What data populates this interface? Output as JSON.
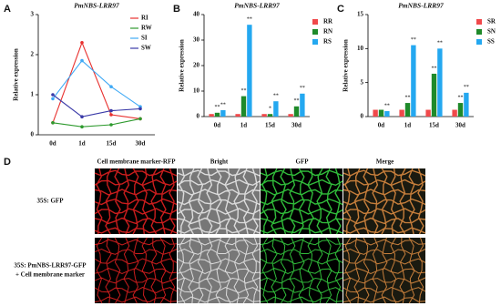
{
  "chart_data": [
    {
      "type": "line",
      "label": "A",
      "title": "PmNBS-LRR97",
      "y_label": "Relative expression",
      "categories": [
        "0d",
        "1d",
        "15d",
        "30d"
      ],
      "series": [
        {
          "name": "RI",
          "color": "#e8312f",
          "values": [
            0.3,
            2.3,
            0.5,
            0.4
          ]
        },
        {
          "name": "RW",
          "color": "#2e9a2e",
          "values": [
            0.3,
            0.2,
            0.25,
            0.4
          ]
        },
        {
          "name": "SI",
          "color": "#3fa9f5",
          "values": [
            0.9,
            1.85,
            1.2,
            0.7
          ]
        },
        {
          "name": "SW",
          "color": "#3a3aa8",
          "values": [
            1.0,
            0.45,
            0.6,
            0.65
          ]
        }
      ],
      "ylim": [
        0,
        3
      ],
      "yticks": [
        0,
        1,
        2,
        3
      ]
    },
    {
      "type": "bar",
      "label": "B",
      "title": "PmNBS-LRR97",
      "y_label": "Relative expression",
      "categories": [
        "0d",
        "1d",
        "15d",
        "30d"
      ],
      "series": [
        {
          "name": "RR",
          "color": "#f0494b",
          "values": [
            1,
            1,
            1,
            1
          ],
          "significance": [
            null,
            null,
            null,
            null
          ]
        },
        {
          "name": "RN",
          "color": "#1f8a2a",
          "values": [
            1.5,
            8,
            1,
            4
          ],
          "significance": [
            "**",
            "**",
            "*",
            "**"
          ]
        },
        {
          "name": "RS",
          "color": "#24a8f0",
          "values": [
            2.5,
            36,
            6,
            9
          ],
          "significance": [
            "**",
            "**",
            "**",
            "**"
          ]
        }
      ],
      "ylim": [
        0,
        40
      ],
      "yticks": [
        0,
        10,
        20,
        30,
        40
      ]
    },
    {
      "type": "bar",
      "label": "C",
      "title": "PmNBS-LRR97",
      "y_label": "Relative expression",
      "categories": [
        "0d",
        "1d",
        "15d",
        "30d"
      ],
      "series": [
        {
          "name": "SR",
          "color": "#f0494b",
          "values": [
            1,
            1,
            1,
            1
          ],
          "significance": [
            null,
            null,
            null,
            null
          ]
        },
        {
          "name": "SN",
          "color": "#1f8a2a",
          "values": [
            1,
            2,
            6.3,
            2
          ],
          "significance": [
            null,
            "**",
            "**",
            "**"
          ]
        },
        {
          "name": "SS",
          "color": "#24a8f0",
          "values": [
            0.8,
            10.5,
            10,
            3.5
          ],
          "significance": [
            "**",
            "**",
            "**",
            "**"
          ]
        }
      ],
      "ylim": [
        0,
        15
      ],
      "yticks": [
        0,
        5,
        10,
        15
      ]
    }
  ],
  "panel_d": {
    "label": "D",
    "columns": [
      "Cell membrane marker-RFP",
      "Bright",
      "GFP",
      "Merge"
    ],
    "rows": [
      [
        "35S: GFP"
      ],
      [
        "35S: PmNBS-LRR97-GFP",
        "+ Cell membrane marker"
      ]
    ]
  }
}
